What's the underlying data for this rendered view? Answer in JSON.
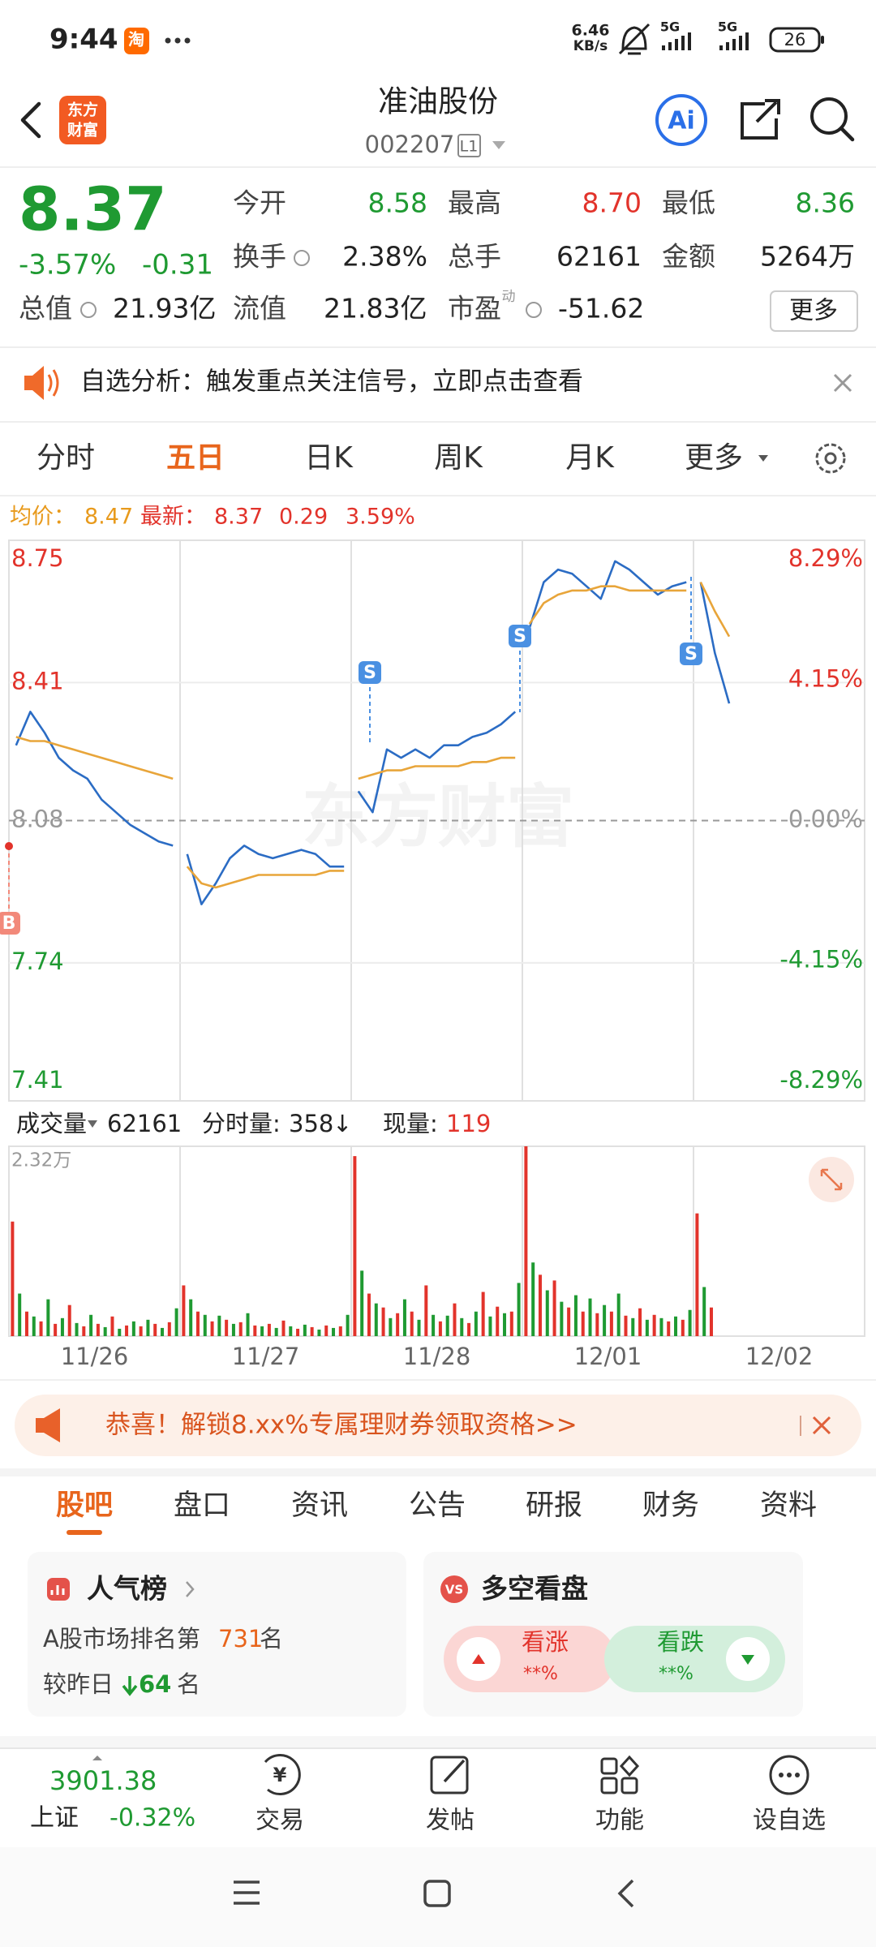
{
  "status_bar": {
    "time": "9:44",
    "app_icon": "淘",
    "speed": "6.46",
    "speed_unit": "KB/s",
    "network_1": "5G",
    "network_2": "5G",
    "battery": "26"
  },
  "header": {
    "logo": [
      "东方",
      "财富"
    ],
    "title": "准油股份",
    "code": "002207",
    "level": "L1",
    "ai": "Ai"
  },
  "quote": {
    "price": "8.37",
    "change_pct": "-3.57%",
    "change": "-0.31",
    "stats": [
      {
        "label": "今开",
        "value": "8.58"
      },
      {
        "label": "最高",
        "value": "8.70"
      },
      {
        "label": "最低",
        "value": "8.36"
      },
      {
        "label": "换手",
        "value": "2.38%"
      },
      {
        "label": "总手",
        "value": "62161"
      },
      {
        "label": "金额",
        "value": "5264万"
      },
      {
        "label": "总值",
        "value": "21.93亿"
      },
      {
        "label": "流值",
        "value": "21.83亿"
      },
      {
        "label": "市盈",
        "value": "-51.62"
      }
    ],
    "pe_note": "动",
    "more": "更多"
  },
  "notice": {
    "text": "自选分析：触发重点关注信号，立即点击查看"
  },
  "period_tabs": {
    "items": [
      "分时",
      "五日",
      "日K",
      "周K",
      "月K",
      "更多"
    ],
    "active": 1
  },
  "price_chart": {
    "avg_label": "均价：",
    "avg": "8.47",
    "latest_label": "最新：",
    "latest": "8.37",
    "change": "0.29",
    "change_pct": "3.59%",
    "watermark": "东方财富",
    "ylim": [
      7.41,
      8.75
    ],
    "yticks": [
      8.75,
      8.41,
      8.08,
      7.74,
      7.41
    ],
    "y2lim": [
      -8.29,
      8.29
    ],
    "y2ticks": [
      {
        "value": 8.29,
        "label": "8.29%"
      },
      {
        "value": 4.15,
        "label": "4.15%"
      },
      {
        "value": 0,
        "label": "0.00%"
      },
      {
        "value": -4.15,
        "label": "-4.15%"
      },
      {
        "value": -8.29,
        "label": "-8.29%"
      }
    ],
    "dates": [
      "11/26",
      "11/27",
      "11/28",
      "12/01",
      "12/02"
    ],
    "signals": [
      "B",
      "S",
      "S",
      "S"
    ],
    "days": [
      {
        "price": [
          8.26,
          8.34,
          8.29,
          8.23,
          8.2,
          8.18,
          8.13,
          8.1,
          8.07,
          8.05,
          8.03,
          8.02
        ],
        "avg": [
          8.28,
          8.27,
          8.27,
          8.26,
          8.25,
          8.24,
          8.23,
          8.22,
          8.21,
          8.2,
          8.19,
          8.18
        ]
      },
      {
        "price": [
          8.0,
          7.88,
          7.93,
          7.99,
          8.02,
          8.0,
          7.99,
          8.0,
          8.01,
          8.0,
          7.97,
          7.97
        ],
        "avg": [
          7.97,
          7.93,
          7.92,
          7.93,
          7.94,
          7.95,
          7.95,
          7.95,
          7.95,
          7.95,
          7.96,
          7.96
        ]
      },
      {
        "price": [
          8.15,
          8.1,
          8.25,
          8.23,
          8.25,
          8.23,
          8.26,
          8.26,
          8.28,
          8.29,
          8.31,
          8.34
        ],
        "avg": [
          8.18,
          8.19,
          8.2,
          8.2,
          8.21,
          8.21,
          8.21,
          8.21,
          8.22,
          8.22,
          8.23,
          8.23
        ]
      },
      {
        "price": [
          8.54,
          8.65,
          8.68,
          8.67,
          8.64,
          8.61,
          8.7,
          8.68,
          8.65,
          8.62,
          8.64,
          8.65
        ],
        "avg": [
          8.55,
          8.6,
          8.62,
          8.63,
          8.63,
          8.64,
          8.64,
          8.63,
          8.63,
          8.63,
          8.63,
          8.63
        ]
      },
      {
        "price": [
          8.65,
          8.48,
          8.36
        ],
        "avg": [
          8.65,
          8.58,
          8.52
        ]
      }
    ]
  },
  "volume": {
    "label": "成交量",
    "total": "62161",
    "minute_label": "分时量:",
    "minute": "358",
    "minute_arrow": "↓",
    "now_label": "现量:",
    "now": "119",
    "ylim": [
      0,
      23200
    ],
    "yticks": [
      {
        "value": 23200,
        "label": "2.32万"
      }
    ],
    "days": [
      [
        14000,
        5200,
        3000,
        2400,
        1800,
        4500,
        1500,
        2200,
        3800,
        1600,
        1200,
        2600,
        1500,
        1100,
        2400,
        900,
        1300,
        1800,
        1200,
        2000,
        1500,
        1000,
        1700,
        3400
      ],
      [
        6200,
        4500,
        3000,
        2600,
        1800,
        2500,
        2000,
        1500,
        1700,
        2800,
        1300,
        1200,
        1500,
        1000,
        1900,
        1200,
        900,
        1400,
        1100,
        800,
        1300,
        1000,
        1200,
        2600
      ],
      [
        22000,
        8000,
        5200,
        4000,
        3500,
        2200,
        2800,
        4500,
        3000,
        2000,
        6200,
        2600,
        1800,
        2500,
        4000,
        2200,
        1600,
        3000,
        5400,
        2400,
        3600,
        2800,
        3000,
        6500
      ],
      [
        23200,
        9000,
        7500,
        5600,
        6800,
        4200,
        3500,
        5000,
        3000,
        4600,
        2800,
        3800,
        3000,
        5200,
        2500,
        2200,
        3400,
        2000,
        2600,
        2200,
        1800,
        2400,
        2000,
        3200
      ],
      [
        15000,
        6000,
        3500
      ]
    ]
  },
  "banner": {
    "text": "恭喜！解锁8.xx%专属理财券领取资格>>"
  },
  "content_tabs": {
    "items": [
      "股吧",
      "盘口",
      "资讯",
      "公告",
      "研报",
      "财务",
      "资料"
    ],
    "active": 0
  },
  "popularity": {
    "title": "人气榜",
    "rank_prefix": "A股市场排名第",
    "rank": "731",
    "rank_suffix": "名",
    "change_prefix": "较昨日",
    "change": "64",
    "change_suffix": "名"
  },
  "sentiment": {
    "icon": "VS",
    "title": "多空看盘",
    "bull": "看涨",
    "bull_pct": "**%",
    "bear": "看跌",
    "bear_pct": "**%"
  },
  "bottom_nav": {
    "index_value": "3901.38",
    "index_name": "上证",
    "index_change": "-0.32%",
    "yuan": "¥",
    "items": [
      "交易",
      "发帖",
      "功能",
      "设自选"
    ]
  }
}
